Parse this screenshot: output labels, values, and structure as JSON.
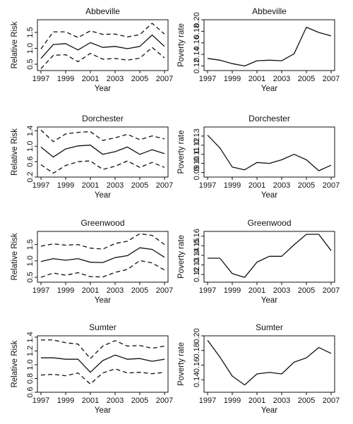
{
  "chart_data": [
    {
      "type": "line",
      "title": "Abbeville",
      "xlabel": "Year",
      "ylabel": "Relative Risk",
      "x": [
        1997,
        1998,
        1999,
        2000,
        2001,
        2002,
        2003,
        2004,
        2005,
        2006,
        2007
      ],
      "xticks": [
        "1997",
        "1999",
        "2001",
        "2003",
        "2005",
        "2007"
      ],
      "yticks": [
        "0.5",
        "1.0",
        "1.5"
      ],
      "ylim": [
        0.3,
        1.9
      ],
      "series": [
        {
          "style": "solid",
          "values": [
            0.68,
            1.12,
            1.15,
            0.95,
            1.18,
            1.03,
            1.06,
            0.99,
            1.06,
            1.42,
            1.06
          ]
        },
        {
          "style": "dashed",
          "values": [
            0.98,
            1.52,
            1.52,
            1.34,
            1.55,
            1.44,
            1.45,
            1.36,
            1.43,
            1.79,
            1.45
          ]
        },
        {
          "style": "dashed",
          "values": [
            0.36,
            0.78,
            0.8,
            0.58,
            0.84,
            0.66,
            0.68,
            0.63,
            0.69,
            1.03,
            0.7
          ]
        }
      ]
    },
    {
      "type": "line",
      "title": "Abbeville",
      "xlabel": "Year",
      "ylabel": "Poverty rate",
      "x": [
        1997,
        1998,
        1999,
        2000,
        2001,
        2002,
        2003,
        2004,
        2005,
        2006,
        2007
      ],
      "xticks": [
        "1997",
        "1999",
        "2001",
        "2003",
        "2005",
        "2007"
      ],
      "yticks": [
        "0.12",
        "0.14",
        "0.16",
        "0.18",
        "0.20"
      ],
      "ylim": [
        0.112,
        0.2
      ],
      "series": [
        {
          "style": "solid",
          "values": [
            0.133,
            0.13,
            0.124,
            0.12,
            0.129,
            0.13,
            0.129,
            0.141,
            0.187,
            0.178,
            0.172
          ]
        }
      ]
    },
    {
      "type": "line",
      "title": "Dorchester",
      "xlabel": "Year",
      "ylabel": "Relative Risk",
      "x": [
        1997,
        1998,
        1999,
        2000,
        2001,
        2002,
        2003,
        2004,
        2005,
        2006,
        2007
      ],
      "xticks": [
        "1997",
        "1999",
        "2001",
        "2003",
        "2005",
        "2007"
      ],
      "yticks": [
        "0.2",
        "0.6",
        "1.0",
        "1.4"
      ],
      "ylim": [
        0.2,
        1.5
      ],
      "series": [
        {
          "style": "solid",
          "values": [
            0.98,
            0.72,
            0.93,
            1.01,
            1.03,
            0.79,
            0.86,
            0.98,
            0.79,
            0.91,
            0.81
          ]
        },
        {
          "style": "dashed",
          "values": [
            1.42,
            1.12,
            1.32,
            1.36,
            1.38,
            1.15,
            1.22,
            1.31,
            1.17,
            1.27,
            1.19
          ]
        },
        {
          "style": "dashed",
          "values": [
            0.52,
            0.3,
            0.5,
            0.6,
            0.62,
            0.4,
            0.48,
            0.62,
            0.45,
            0.58,
            0.45
          ]
        }
      ]
    },
    {
      "type": "line",
      "title": "Dorchester",
      "xlabel": "Year",
      "ylabel": "Poverty rate",
      "x": [
        1997,
        1998,
        1999,
        2000,
        2001,
        2002,
        2003,
        2004,
        2005,
        2006,
        2007
      ],
      "xticks": [
        "1997",
        "1999",
        "2001",
        "2003",
        "2005",
        "2007"
      ],
      "yticks": [
        "0.09",
        "0.10",
        "0.11",
        "0.12",
        "0.13"
      ],
      "ylim": [
        0.085,
        0.14
      ],
      "series": [
        {
          "style": "solid",
          "values": [
            0.131,
            0.117,
            0.096,
            0.093,
            0.101,
            0.1,
            0.104,
            0.11,
            0.104,
            0.092,
            0.098
          ]
        }
      ]
    },
    {
      "type": "line",
      "title": "Greenwood",
      "xlabel": "Year",
      "ylabel": "Relative Risk",
      "x": [
        1997,
        1998,
        1999,
        2000,
        2001,
        2002,
        2003,
        2004,
        2005,
        2006,
        2007
      ],
      "xticks": [
        "1997",
        "1999",
        "2001",
        "2003",
        "2005",
        "2007"
      ],
      "yticks": [
        "0.5",
        "1.0",
        "1.5"
      ],
      "ylim": [
        0.35,
        1.9
      ],
      "series": [
        {
          "style": "solid",
          "values": [
            0.98,
            1.07,
            1.02,
            1.07,
            0.96,
            0.95,
            1.1,
            1.16,
            1.4,
            1.35,
            1.11
          ]
        },
        {
          "style": "dashed",
          "values": [
            1.45,
            1.52,
            1.48,
            1.5,
            1.39,
            1.36,
            1.53,
            1.6,
            1.83,
            1.78,
            1.5
          ]
        },
        {
          "style": "dashed",
          "values": [
            0.5,
            0.63,
            0.56,
            0.64,
            0.52,
            0.51,
            0.65,
            0.74,
            1.01,
            0.94,
            0.72
          ]
        }
      ]
    },
    {
      "type": "line",
      "title": "Greenwood",
      "xlabel": "Year",
      "ylabel": "Poverty rate",
      "x": [
        1997,
        1998,
        1999,
        2000,
        2001,
        2002,
        2003,
        2004,
        2005,
        2006,
        2007
      ],
      "xticks": [
        "1997",
        "1999",
        "2001",
        "2003",
        "2005",
        "2007"
      ],
      "yticks": [
        "0.12",
        "0.13",
        "0.14",
        "0.15",
        "0.16"
      ],
      "ylim": [
        0.112,
        0.165
      ],
      "series": [
        {
          "style": "solid",
          "values": [
            0.137,
            0.137,
            0.121,
            0.117,
            0.133,
            0.139,
            0.139,
            0.151,
            0.162,
            0.162,
            0.145
          ]
        }
      ]
    },
    {
      "type": "line",
      "title": "Sumter",
      "xlabel": "Year",
      "ylabel": "Relative Risk",
      "x": [
        1997,
        1998,
        1999,
        2000,
        2001,
        2002,
        2003,
        2004,
        2005,
        2006,
        2007
      ],
      "xticks": [
        "1997",
        "1999",
        "2001",
        "2003",
        "2005",
        "2007"
      ],
      "yticks": [
        "0.6",
        "0.8",
        "1.0",
        "1.2",
        "1.4"
      ],
      "ylim": [
        0.6,
        1.42
      ],
      "series": [
        {
          "style": "solid",
          "values": [
            1.1,
            1.1,
            1.08,
            1.08,
            0.89,
            1.06,
            1.14,
            1.08,
            1.09,
            1.05,
            1.08
          ]
        },
        {
          "style": "dashed",
          "values": [
            1.36,
            1.36,
            1.32,
            1.3,
            1.09,
            1.27,
            1.35,
            1.27,
            1.28,
            1.24,
            1.27
          ]
        },
        {
          "style": "dashed",
          "values": [
            0.85,
            0.86,
            0.84,
            0.88,
            0.72,
            0.88,
            0.94,
            0.88,
            0.89,
            0.87,
            0.89
          ]
        }
      ]
    },
    {
      "type": "line",
      "title": "Sumter",
      "xlabel": "Year",
      "ylabel": "Poverty rate",
      "x": [
        1997,
        1998,
        1999,
        2000,
        2001,
        2002,
        2003,
        2004,
        2005,
        2006,
        2007
      ],
      "xticks": [
        "1997",
        "1999",
        "2001",
        "2003",
        "2005",
        "2007"
      ],
      "yticks": [
        "0.14",
        "0.16",
        "0.18",
        "0.20"
      ],
      "ylim": [
        0.123,
        0.2
      ],
      "series": [
        {
          "style": "solid",
          "values": [
            0.194,
            0.171,
            0.145,
            0.133,
            0.148,
            0.15,
            0.148,
            0.164,
            0.17,
            0.184,
            0.176
          ]
        }
      ]
    }
  ]
}
